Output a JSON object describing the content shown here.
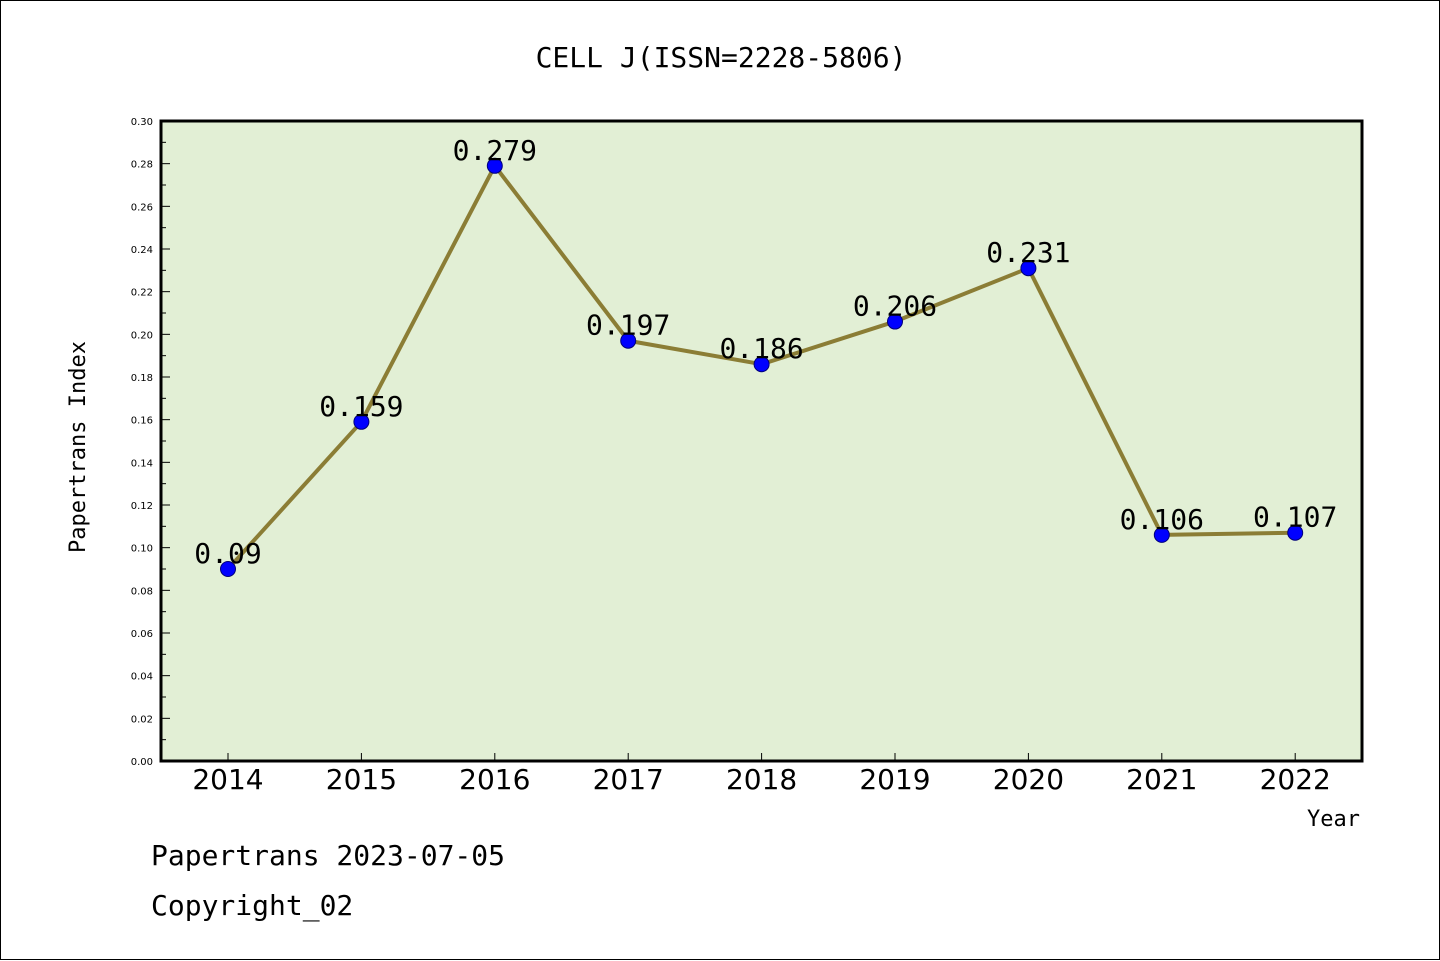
{
  "chart_data": {
    "type": "line",
    "title": "CELL J(ISSN=2228-5806)",
    "xlabel": "Year",
    "ylabel": "Papertrans Index",
    "categories": [
      "2014",
      "2015",
      "2016",
      "2017",
      "2018",
      "2019",
      "2020",
      "2021",
      "2022"
    ],
    "series": [
      {
        "values": [
          0.09,
          0.159,
          0.279,
          0.197,
          0.186,
          0.206,
          0.231,
          0.106,
          0.107
        ],
        "labels": [
          "0.09",
          "0.159",
          "0.279",
          "0.197",
          "0.186",
          "0.206",
          "0.231",
          "0.106",
          "0.107"
        ]
      }
    ],
    "ylim": [
      0,
      0.3
    ],
    "yticks": [
      "0.00",
      "0.02",
      "0.04",
      "0.06",
      "0.08",
      "0.10",
      "0.12",
      "0.14",
      "0.16",
      "0.18",
      "0.20",
      "0.22",
      "0.24",
      "0.26",
      "0.28",
      "0.30"
    ],
    "grid": false,
    "colors": {
      "plot_background": "#e2efd5",
      "line": "#8b7d35",
      "marker": "#0000ff"
    }
  },
  "footer": {
    "date_line": "Papertrans 2023-07-05",
    "copyright": "Copyright_02"
  }
}
